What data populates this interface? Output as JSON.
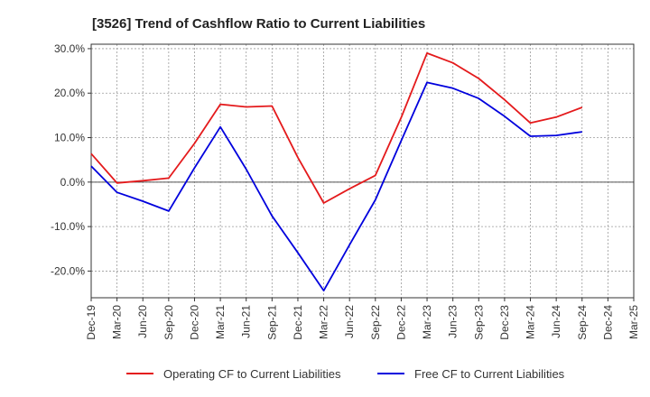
{
  "chart_data": {
    "type": "line",
    "title": "[3526]  Trend of Cashflow Ratio to Current Liabilities",
    "xlabel": "",
    "ylabel": "",
    "categories": [
      "Dec-19",
      "Mar-20",
      "Jun-20",
      "Sep-20",
      "Dec-20",
      "Mar-21",
      "Jun-21",
      "Sep-21",
      "Dec-21",
      "Mar-22",
      "Jun-22",
      "Sep-22",
      "Dec-22",
      "Mar-23",
      "Jun-23",
      "Sep-23",
      "Dec-23",
      "Mar-24",
      "Jun-24",
      "Sep-24",
      "Dec-24",
      "Mar-25"
    ],
    "ylim": [
      -26,
      31
    ],
    "yticks": [
      30,
      20,
      10,
      0,
      -10,
      -20
    ],
    "ytick_labels": [
      "30.0%",
      "20.0%",
      "10.0%",
      "0.0%",
      "-10.0%",
      "-20.0%"
    ],
    "grid": true,
    "legend_position": "bottom",
    "series": [
      {
        "name": "Operating CF to Current Liabilities",
        "color": "#e41a1c",
        "values": [
          6.4,
          -0.2,
          0.3,
          0.9,
          8.7,
          17.5,
          16.9,
          17.1,
          5.5,
          -4.7,
          -1.5,
          1.5,
          14.5,
          29.0,
          26.8,
          23.3,
          18.5,
          13.3,
          14.6,
          16.8,
          null,
          null
        ]
      },
      {
        "name": "Free CF to Current Liabilities",
        "color": "#0000dd",
        "values": [
          3.6,
          -2.3,
          -4.3,
          -6.5,
          3.2,
          12.4,
          2.9,
          -7.6,
          -15.9,
          -24.4,
          -14.1,
          -4.0,
          9.3,
          22.4,
          21.1,
          18.8,
          14.8,
          10.3,
          10.5,
          11.3,
          null,
          null
        ]
      }
    ]
  }
}
